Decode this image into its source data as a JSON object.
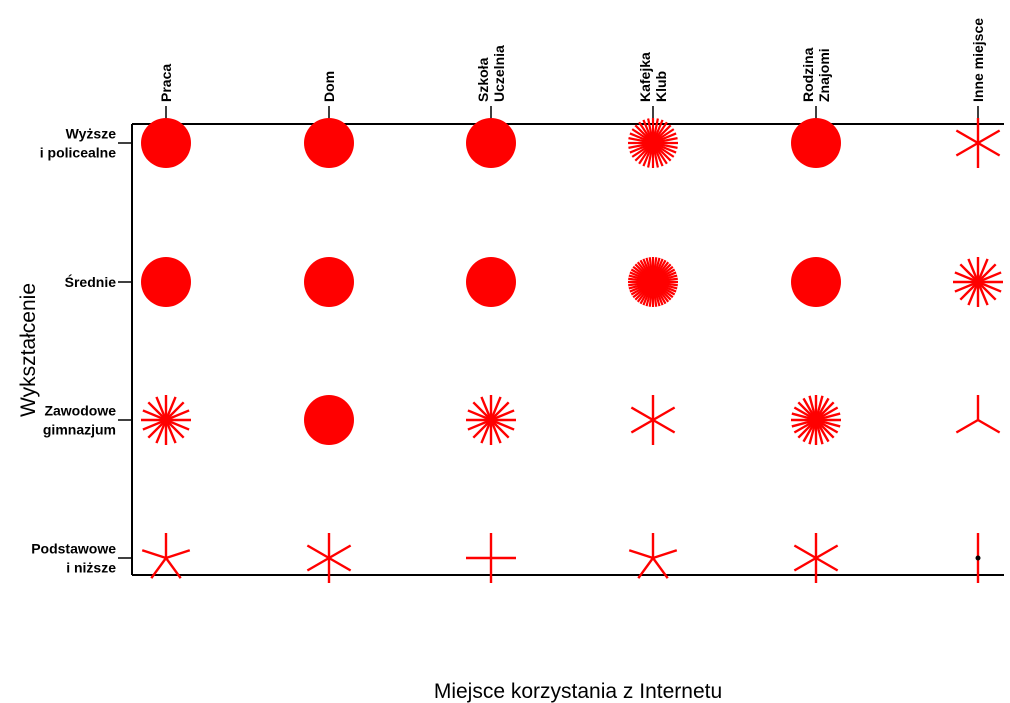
{
  "chart_data": {
    "type": "star-plot",
    "title": "",
    "xlabel": "Miejsce korzystania z Internetu",
    "ylabel": "Wykształcenie",
    "x_categories": [
      [
        "Praca"
      ],
      [
        "Dom"
      ],
      [
        "Szkoła",
        "Uczelnia"
      ],
      [
        "Kafejka",
        "Klub"
      ],
      [
        "Rodzina",
        "Znajomi"
      ],
      [
        "Inne miejsce"
      ]
    ],
    "y_categories": [
      [
        "Wyższe",
        "i policealne"
      ],
      [
        "Średnie"
      ],
      [
        "Zawodowe",
        "gimnazjum"
      ],
      [
        "Podstawowe",
        "i niższe"
      ]
    ],
    "cells": [
      {
        "x": 0,
        "y": 0,
        "rays": 400,
        "filled": true
      },
      {
        "x": 1,
        "y": 0,
        "rays": 400,
        "filled": true
      },
      {
        "x": 2,
        "y": 0,
        "rays": 400,
        "filled": true
      },
      {
        "x": 3,
        "y": 0,
        "rays": 32,
        "filled": false
      },
      {
        "x": 4,
        "y": 0,
        "rays": 120,
        "filled": true
      },
      {
        "x": 5,
        "y": 0,
        "rays": 6,
        "filled": false
      },
      {
        "x": 0,
        "y": 1,
        "rays": 400,
        "filled": true
      },
      {
        "x": 1,
        "y": 1,
        "rays": 400,
        "filled": true
      },
      {
        "x": 2,
        "y": 1,
        "rays": 120,
        "filled": true
      },
      {
        "x": 3,
        "y": 1,
        "rays": 48,
        "filled": false
      },
      {
        "x": 4,
        "y": 1,
        "rays": 120,
        "filled": true
      },
      {
        "x": 5,
        "y": 1,
        "rays": 16,
        "filled": false
      },
      {
        "x": 0,
        "y": 2,
        "rays": 16,
        "filled": false
      },
      {
        "x": 1,
        "y": 2,
        "rays": 120,
        "filled": true
      },
      {
        "x": 2,
        "y": 2,
        "rays": 16,
        "filled": false
      },
      {
        "x": 3,
        "y": 2,
        "rays": 6,
        "filled": false
      },
      {
        "x": 4,
        "y": 2,
        "rays": 24,
        "filled": false
      },
      {
        "x": 5,
        "y": 2,
        "rays": 3,
        "filled": false
      },
      {
        "x": 0,
        "y": 3,
        "rays": 5,
        "filled": false
      },
      {
        "x": 1,
        "y": 3,
        "rays": 6,
        "filled": false
      },
      {
        "x": 2,
        "y": 3,
        "rays": 4,
        "filled": false
      },
      {
        "x": 3,
        "y": 3,
        "rays": 5,
        "filled": false
      },
      {
        "x": 4,
        "y": 3,
        "rays": 6,
        "filled": false
      },
      {
        "x": 5,
        "y": 3,
        "rays": 2,
        "filled": false
      }
    ],
    "colors": {
      "marks": "#ff0000",
      "axes": "#000000",
      "single_obs_dot": "#000000"
    },
    "legend": "none",
    "grid": false
  }
}
